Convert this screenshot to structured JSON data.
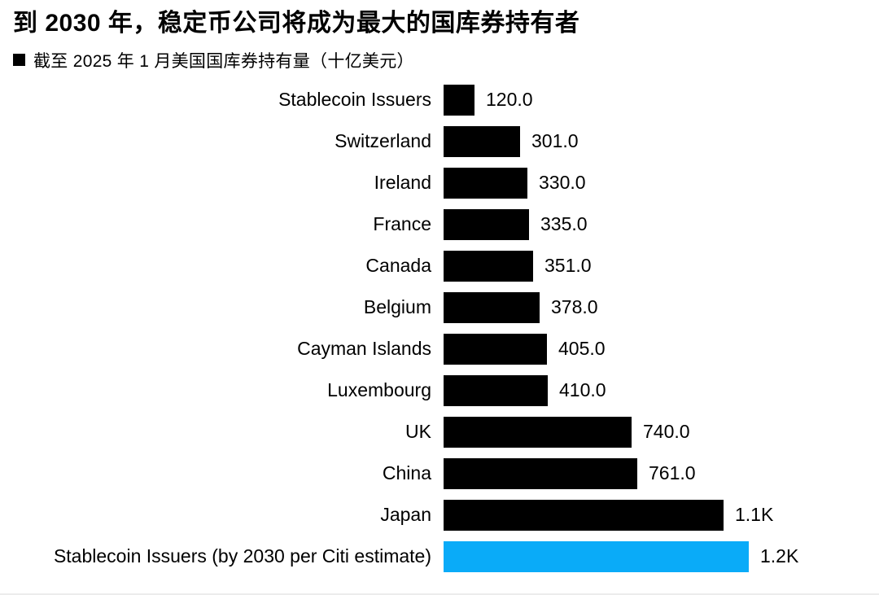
{
  "page": {
    "title": "到 2030 年，稳定币公司将成为最大的国库券持有者",
    "legend": {
      "marker": "black-square",
      "label": "截至 2025 年 1 月美国国库券持有量（十亿美元）"
    }
  },
  "colors": {
    "bar_default": "#000000",
    "bar_highlight": "#0aabf8",
    "text": "#000000",
    "background": "#ffffff"
  },
  "chart_data": {
    "type": "bar",
    "orientation": "horizontal",
    "title": "到 2030 年，稳定币公司将成为最大的国库券持有者",
    "subtitle": "截至 2025 年 1 月美国国库券持有量（十亿美元）",
    "xlim": [
      0,
      1200
    ],
    "grid": false,
    "legend_position": "top-left",
    "bars": [
      {
        "label": "Stablecoin Issuers",
        "value": 120,
        "display": "120.0",
        "color": "#000000"
      },
      {
        "label": "Switzerland",
        "value": 301,
        "display": "301.0",
        "color": "#000000"
      },
      {
        "label": "Ireland",
        "value": 330,
        "display": "330.0",
        "color": "#000000"
      },
      {
        "label": "France",
        "value": 335,
        "display": "335.0",
        "color": "#000000"
      },
      {
        "label": "Canada",
        "value": 351,
        "display": "351.0",
        "color": "#000000"
      },
      {
        "label": "Belgium",
        "value": 378,
        "display": "378.0",
        "color": "#000000"
      },
      {
        "label": "Cayman Islands",
        "value": 405,
        "display": "405.0",
        "color": "#000000"
      },
      {
        "label": "Luxembourg",
        "value": 410,
        "display": "410.0",
        "color": "#000000"
      },
      {
        "label": "UK",
        "value": 740,
        "display": "740.0",
        "color": "#000000"
      },
      {
        "label": "China",
        "value": 761,
        "display": "761.0",
        "color": "#000000"
      },
      {
        "label": "Japan",
        "value": 1100,
        "display": "1.1K",
        "color": "#000000"
      },
      {
        "label": "Stablecoin Issuers (by 2030 per Citi estimate)",
        "value": 1200,
        "display": "1.2K",
        "color": "#0aabf8"
      }
    ]
  }
}
